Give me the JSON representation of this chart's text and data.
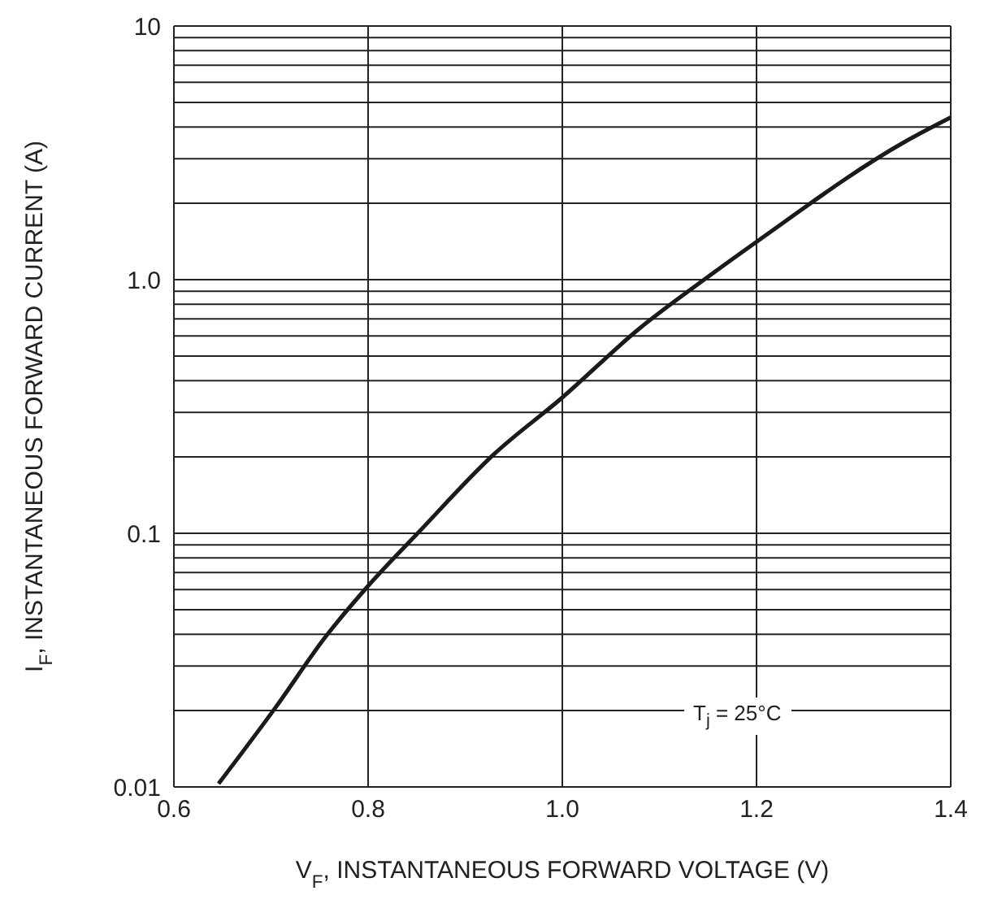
{
  "chart_data": {
    "type": "line",
    "xlabel": "V$_{F}$, INSTANTANEOUS FORWARD VOLTAGE (V)",
    "ylabel": "I$_{F}$, INSTANTANEOUS FORWARD CURRENT (A)",
    "annotations": [
      "T$_{j}$ = 25°C"
    ],
    "series": [
      {
        "color": "#1a1a1a",
        "x": [
          0.646,
          0.706,
          0.756,
          0.8,
          0.851,
          0.929,
          1.0,
          1.079,
          1.146,
          1.2,
          1.353,
          1.4
        ],
        "values": [
          0.0103,
          0.0209,
          0.039,
          0.062,
          0.1,
          0.204,
          0.343,
          0.64,
          1.0,
          1.41,
          3.5,
          4.36
        ]
      }
    ],
    "xlim": [
      0.6,
      1.4
    ],
    "xticks": [
      0.6,
      0.8,
      {
        "value": 1,
        "label": "1.0"
      },
      1.2,
      1.4
    ],
    "ylim": [
      0.01,
      10
    ],
    "yticks": [
      0.01,
      0.1,
      {
        "value": 1,
        "label": "1.0"
      },
      10
    ],
    "log": "y",
    "grid": true,
    "marker": "none",
    "line_style": "solid"
  }
}
